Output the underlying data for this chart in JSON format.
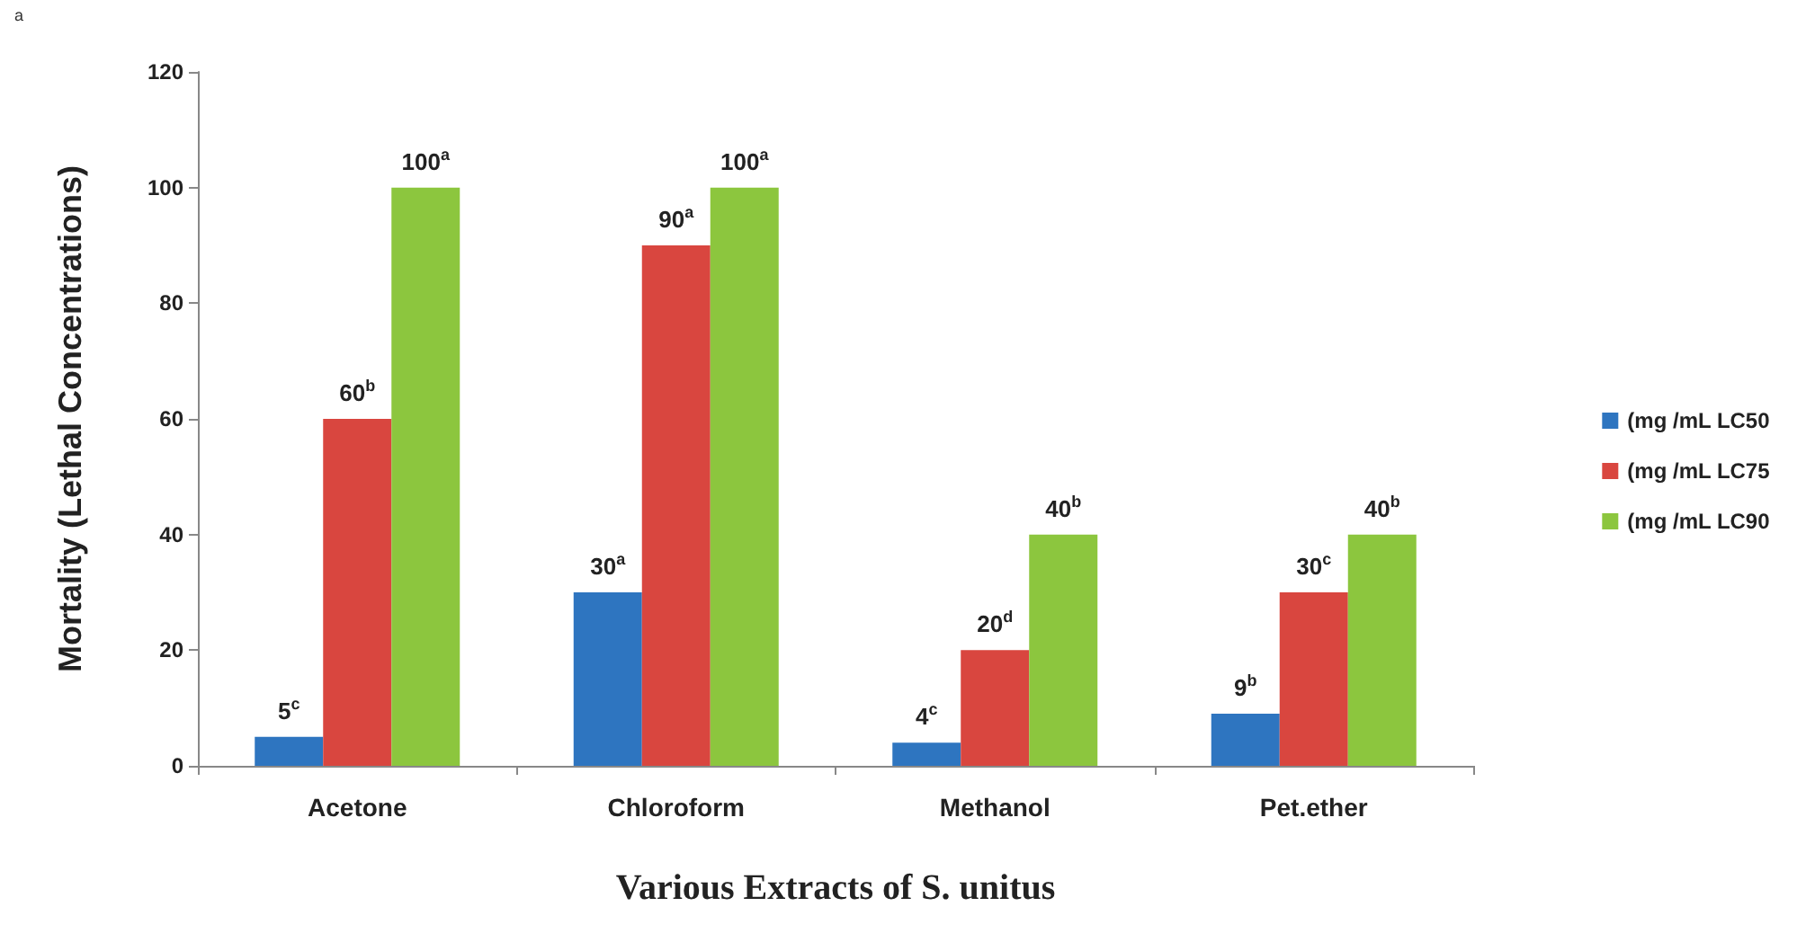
{
  "chart_data": {
    "type": "bar",
    "xlabel": "Various Extracts of S. unitus",
    "ylabel": "Mortality (Lethal Concentrations)",
    "annotations": [
      "a"
    ],
    "categories": [
      "Acetone",
      "Chloroform",
      "Methanol",
      "Pet.ether"
    ],
    "series": [
      {
        "name": "(mg /mL LC50",
        "color": "#2e75c0",
        "values": [
          5,
          30,
          4,
          9
        ],
        "value_labels": [
          "5$^{c}$",
          "30$^{a}$",
          "4$^{c}$",
          "9$^{b}$"
        ]
      },
      {
        "name": "(mg /mL LC75",
        "color": "#d9463f",
        "values": [
          60,
          90,
          20,
          30
        ],
        "value_labels": [
          "60$^{b}$",
          "90$^{a}$",
          "20$^{d}$",
          "30$^{c}$"
        ]
      },
      {
        "name": "(mg /mL LC90",
        "color": "#8cc63e",
        "values": [
          100,
          100,
          40,
          40
        ],
        "value_labels": [
          "100$^{a}$",
          "100$^{a}$",
          "40$^{b}$",
          "40$^{b}$"
        ]
      }
    ],
    "ylim": [
      0,
      120
    ],
    "yticks": [
      0,
      20,
      40,
      60,
      80,
      100,
      120
    ],
    "grid": false,
    "legend": "right"
  }
}
